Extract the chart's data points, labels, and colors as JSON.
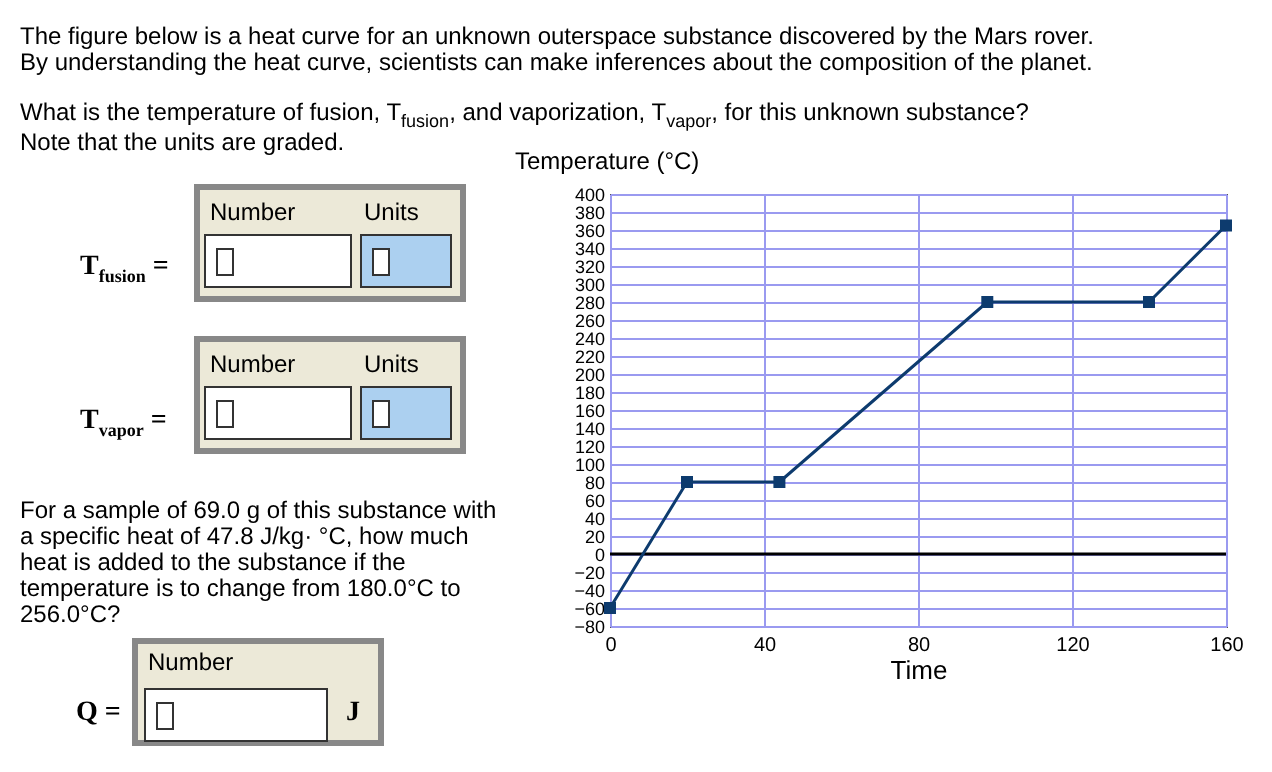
{
  "chart_data": {
    "type": "line",
    "xlabel": "Time",
    "ylabel": "Temperature (°C)",
    "x": [
      0,
      20,
      44,
      98,
      140,
      160
    ],
    "series": [
      {
        "color": "#0d3b6e",
        "values": [
          -60,
          80,
          80,
          280,
          280,
          365
        ]
      }
    ],
    "xlim": [
      0,
      160
    ],
    "xticks": [
      0,
      40,
      80,
      120,
      160
    ],
    "ylim": [
      -80,
      400
    ],
    "yticks": [
      -80,
      -60,
      -40,
      -20,
      0,
      20,
      40,
      60,
      80,
      100,
      120,
      140,
      160,
      180,
      200,
      220,
      240,
      260,
      280,
      300,
      320,
      340,
      360,
      380,
      400
    ],
    "grid": true,
    "marker": "square",
    "ref_lines": [
      {
        "axis": "y",
        "value": 0,
        "color": "#000000"
      }
    ],
    "annotations": [
      "The figure below is a heat curve for an unknown outerspace substance discovered by the Mars rover.",
      "By understanding the heat curve, scientists can make inferences about the composition of the planet.",
      "What is the temperature of fusion, T$_{fusion}$, and vaporization, T$_{vapor}$, for this unknown substance?",
      "Note that the units are graded.",
      "Number",
      "Units",
      "T$_{fusion}$ =",
      "Number",
      "Units",
      "T$_{vapor}$ =",
      "For a sample of 69.0 g of this substance with a specific heat of 47.8 J/kg· °C, how much heat is added to the substance if the temperature is to change from 180.0°C to 256.0°C?",
      "Number",
      "Q =",
      "J"
    ]
  }
}
